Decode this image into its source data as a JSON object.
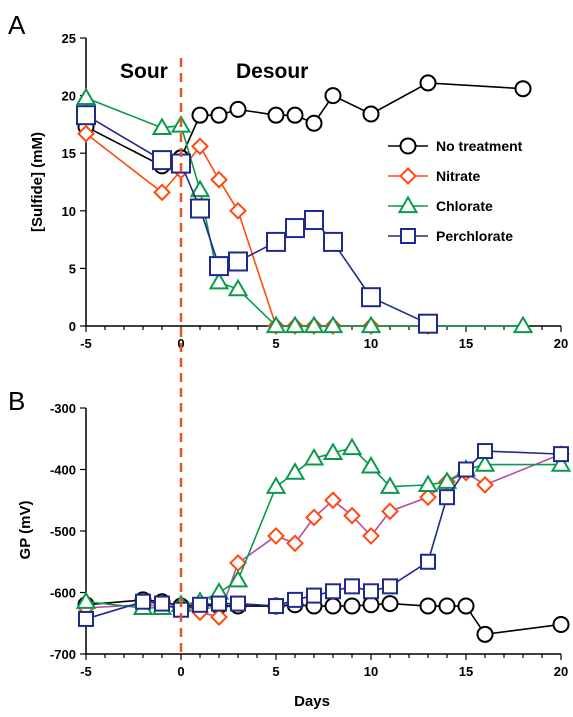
{
  "figure": {
    "panel_a_letter": "A",
    "panel_b_letter": "B",
    "phase_sour": "Sour",
    "phase_desour": "Desour",
    "colors": {
      "no_treatment": "#000000",
      "nitrate": "#ff4a10",
      "chlorate": "#0a9a4a",
      "perchlorate": "#1f2a8e",
      "nitrate_line_b": "#b84aa8",
      "dashed_marker": "#e8542a"
    }
  },
  "chart_data": [
    {
      "panel": "A",
      "type": "line",
      "xlabel": "",
      "ylabel": "[Sulfide] (mM)",
      "xlim": [
        -5,
        20
      ],
      "ylim": [
        0,
        25
      ],
      "x_ticks": [
        "-5",
        "0",
        "5",
        "10",
        "15",
        "20"
      ],
      "y_ticks": [
        "0",
        "5",
        "10",
        "15",
        "20",
        "25"
      ],
      "grid": false,
      "legend_position": "right",
      "vertical_marker_x": 0,
      "series": [
        {
          "name": "No treatment",
          "marker": "circle",
          "x": [
            -5,
            -1,
            0,
            1,
            2,
            3,
            5,
            6,
            7,
            8,
            10,
            13,
            18
          ],
          "y": [
            17.3,
            13.9,
            14.6,
            18.3,
            18.3,
            18.8,
            18.3,
            18.3,
            17.6,
            20.0,
            18.4,
            21.1,
            20.6
          ]
        },
        {
          "name": "Nitrate",
          "marker": "diamond",
          "x": [
            -5,
            -1,
            0,
            1,
            2,
            3,
            5,
            6,
            7,
            8,
            10,
            13
          ],
          "y": [
            16.7,
            11.6,
            13.5,
            15.6,
            12.7,
            10.0,
            0,
            0,
            0,
            0,
            0,
            0
          ]
        },
        {
          "name": "Chlorate",
          "marker": "triangle",
          "x": [
            -5,
            -1,
            0,
            1,
            2,
            3,
            5,
            6,
            7,
            8,
            10,
            13,
            18
          ],
          "y": [
            19.8,
            17.2,
            17.4,
            11.8,
            3.8,
            3.2,
            0,
            0,
            0,
            0,
            0,
            0,
            0
          ]
        },
        {
          "name": "Perchlorate",
          "marker": "square",
          "x": [
            -5,
            -1,
            0,
            1,
            2,
            3,
            5,
            6,
            7,
            8,
            10,
            13
          ],
          "y": [
            18.3,
            14.4,
            14.1,
            10.2,
            5.2,
            5.6,
            7.3,
            8.5,
            9.2,
            7.3,
            2.5,
            0.2
          ]
        }
      ]
    },
    {
      "panel": "B",
      "type": "line",
      "xlabel": "Days",
      "ylabel": "GP (mV)",
      "xlim": [
        -5,
        20
      ],
      "ylim": [
        -700,
        -300
      ],
      "x_ticks": [
        "-5",
        "0",
        "5",
        "10",
        "15",
        "20"
      ],
      "y_ticks": [
        "-700",
        "-600",
        "-500",
        "-400",
        "-300"
      ],
      "grid": false,
      "vertical_marker_x": 0,
      "series": [
        {
          "name": "No treatment",
          "marker": "circle",
          "x": [
            -5,
            -2,
            -1,
            0,
            1,
            2,
            3,
            5,
            6,
            7,
            8,
            9,
            10,
            11,
            13,
            14,
            15,
            16,
            20
          ],
          "y": [
            -620,
            -612,
            -615,
            -622,
            -620,
            -622,
            -622,
            -622,
            -620,
            -622,
            -622,
            -622,
            -620,
            -618,
            -622,
            -622,
            -622,
            -668,
            -652
          ]
        },
        {
          "name": "Nitrate",
          "marker": "diamond",
          "x": [
            -5,
            -2,
            -1,
            0,
            1,
            2,
            3,
            5,
            6,
            7,
            8,
            9,
            10,
            11,
            13,
            14,
            15,
            16,
            20
          ],
          "y": [
            -625,
            -620,
            -622,
            -625,
            -632,
            -640,
            -552,
            -508,
            -520,
            -478,
            -450,
            -475,
            -508,
            -468,
            -445,
            -420,
            -405,
            -425,
            -375
          ]
        },
        {
          "name": "Chlorate",
          "marker": "triangle",
          "x": [
            -5,
            -2,
            -1,
            0,
            1,
            2,
            3,
            5,
            6,
            7,
            8,
            9,
            10,
            11,
            13,
            14,
            15,
            16,
            20
          ],
          "y": [
            -615,
            -625,
            -625,
            -620,
            -615,
            -600,
            -580,
            -428,
            -405,
            -382,
            -373,
            -365,
            -395,
            -428,
            -425,
            -420,
            -400,
            -392,
            -392
          ]
        },
        {
          "name": "Perchlorate",
          "marker": "square",
          "x": [
            -5,
            -2,
            -1,
            0,
            1,
            2,
            3,
            5,
            6,
            7,
            8,
            9,
            10,
            11,
            13,
            14,
            15,
            16,
            20
          ],
          "y": [
            -643,
            -615,
            -618,
            -628,
            -620,
            -618,
            -618,
            -622,
            -612,
            -605,
            -598,
            -590,
            -598,
            -590,
            -550,
            -445,
            -400,
            -370,
            -375
          ]
        }
      ]
    }
  ]
}
